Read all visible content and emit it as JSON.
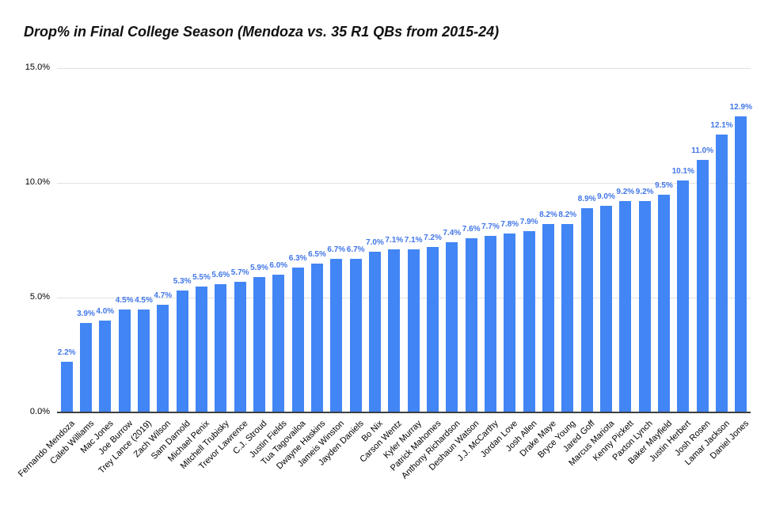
{
  "chart_data": {
    "type": "bar",
    "title": "Drop% in Final College Season (Mendoza vs. 35 R1 QBs from 2015-24)",
    "xlabel": "",
    "ylabel": "",
    "ylim": [
      0,
      15
    ],
    "y_ticks": [
      0,
      5,
      10,
      15
    ],
    "y_tick_labels": [
      "0.0%",
      "5.0%",
      "10.0%",
      "15.0%"
    ],
    "grid": "horizontal",
    "legend": "none",
    "categories": [
      "Fernando Mendoza",
      "Caleb Williams",
      "Mac Jones",
      "Joe Burrow",
      "Trey Lance (2019)",
      "Zach Wilson",
      "Sam Darnold",
      "Michael Penix",
      "Mitchell Trubisky",
      "Trevor Lawrence",
      "C.J. Stroud",
      "Justin Fields",
      "Tua Tagovailoa",
      "Dwayne Haskins",
      "Jameis Winston",
      "Jayden Daniels",
      "Bo Nix",
      "Carson Wentz",
      "Kyler Murray",
      "Patrick Mahomes",
      "Anthony Richardson",
      "Deshaun Watson",
      "J.J. McCarthy",
      "Jordan Love",
      "Josh Allen",
      "Drake Maye",
      "Bryce Young",
      "Jared Goff",
      "Marcus Mariota",
      "Kenny Pickett",
      "Paxton Lynch",
      "Baker Mayfield",
      "Justin Herbert",
      "Josh Rosen",
      "Lamar Jackson",
      "Daniel Jones"
    ],
    "values": [
      2.2,
      3.9,
      4.0,
      4.5,
      4.5,
      4.7,
      5.3,
      5.5,
      5.6,
      5.7,
      5.9,
      6.0,
      6.3,
      6.5,
      6.7,
      6.7,
      7.0,
      7.1,
      7.1,
      7.2,
      7.4,
      7.6,
      7.7,
      7.8,
      7.9,
      8.2,
      8.2,
      8.9,
      9.0,
      9.2,
      9.2,
      9.5,
      10.1,
      11.0,
      12.1,
      12.9
    ],
    "value_labels": [
      "2.2%",
      "3.9%",
      "4.0%",
      "4.5%",
      "4.5%",
      "4.7%",
      "5.3%",
      "5.5%",
      "5.6%",
      "5.7%",
      "5.9%",
      "6.0%",
      "6.3%",
      "6.5%",
      "6.7%",
      "6.7%",
      "7.0%",
      "7.1%",
      "7.1%",
      "7.2%",
      "7.4%",
      "7.6%",
      "7.7%",
      "7.8%",
      "7.9%",
      "8.2%",
      "8.2%",
      "8.9%",
      "9.0%",
      "9.2%",
      "9.2%",
      "9.5%",
      "10.1%",
      "11.0%",
      "12.1%",
      "12.9%"
    ],
    "colors": {
      "bar": "#4285f4",
      "value_label": "#4176e8",
      "axis_text": "#000000",
      "gridline": "#e0e0e0",
      "baseline": "#3c4043",
      "title_text": "#111111",
      "background": "#ffffff"
    }
  }
}
